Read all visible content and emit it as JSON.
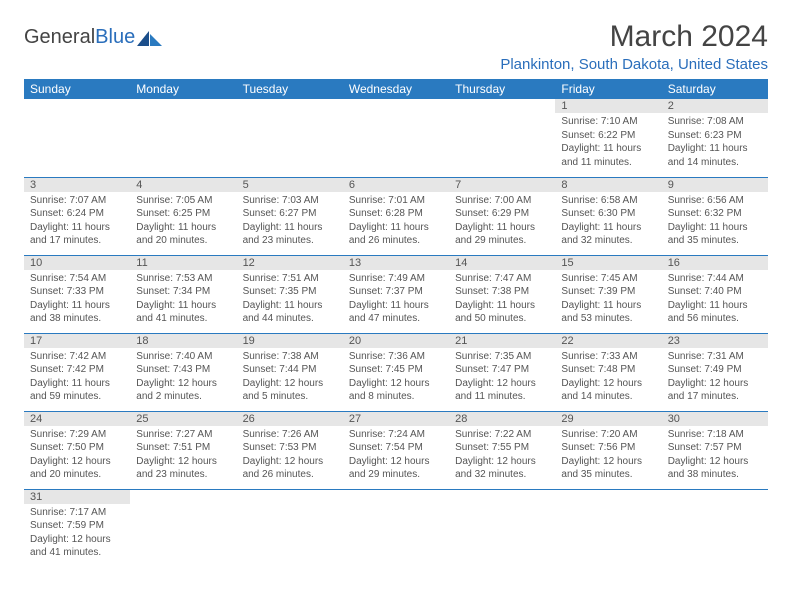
{
  "brand": {
    "text1": "General",
    "text2": "Blue"
  },
  "title": "March 2024",
  "location": "Plankinton, South Dakota, United States",
  "weekdays": [
    "Sunday",
    "Monday",
    "Tuesday",
    "Wednesday",
    "Thursday",
    "Friday",
    "Saturday"
  ],
  "colors": {
    "header_bg": "#2a7ac0",
    "accent": "#2a6ebb",
    "daynum_bg": "#e6e6e6"
  },
  "grid": [
    [
      null,
      null,
      null,
      null,
      null,
      {
        "n": "1",
        "sr": "Sunrise: 7:10 AM",
        "ss": "Sunset: 6:22 PM",
        "dl": "Daylight: 11 hours and 11 minutes."
      },
      {
        "n": "2",
        "sr": "Sunrise: 7:08 AM",
        "ss": "Sunset: 6:23 PM",
        "dl": "Daylight: 11 hours and 14 minutes."
      }
    ],
    [
      {
        "n": "3",
        "sr": "Sunrise: 7:07 AM",
        "ss": "Sunset: 6:24 PM",
        "dl": "Daylight: 11 hours and 17 minutes."
      },
      {
        "n": "4",
        "sr": "Sunrise: 7:05 AM",
        "ss": "Sunset: 6:25 PM",
        "dl": "Daylight: 11 hours and 20 minutes."
      },
      {
        "n": "5",
        "sr": "Sunrise: 7:03 AM",
        "ss": "Sunset: 6:27 PM",
        "dl": "Daylight: 11 hours and 23 minutes."
      },
      {
        "n": "6",
        "sr": "Sunrise: 7:01 AM",
        "ss": "Sunset: 6:28 PM",
        "dl": "Daylight: 11 hours and 26 minutes."
      },
      {
        "n": "7",
        "sr": "Sunrise: 7:00 AM",
        "ss": "Sunset: 6:29 PM",
        "dl": "Daylight: 11 hours and 29 minutes."
      },
      {
        "n": "8",
        "sr": "Sunrise: 6:58 AM",
        "ss": "Sunset: 6:30 PM",
        "dl": "Daylight: 11 hours and 32 minutes."
      },
      {
        "n": "9",
        "sr": "Sunrise: 6:56 AM",
        "ss": "Sunset: 6:32 PM",
        "dl": "Daylight: 11 hours and 35 minutes."
      }
    ],
    [
      {
        "n": "10",
        "sr": "Sunrise: 7:54 AM",
        "ss": "Sunset: 7:33 PM",
        "dl": "Daylight: 11 hours and 38 minutes."
      },
      {
        "n": "11",
        "sr": "Sunrise: 7:53 AM",
        "ss": "Sunset: 7:34 PM",
        "dl": "Daylight: 11 hours and 41 minutes."
      },
      {
        "n": "12",
        "sr": "Sunrise: 7:51 AM",
        "ss": "Sunset: 7:35 PM",
        "dl": "Daylight: 11 hours and 44 minutes."
      },
      {
        "n": "13",
        "sr": "Sunrise: 7:49 AM",
        "ss": "Sunset: 7:37 PM",
        "dl": "Daylight: 11 hours and 47 minutes."
      },
      {
        "n": "14",
        "sr": "Sunrise: 7:47 AM",
        "ss": "Sunset: 7:38 PM",
        "dl": "Daylight: 11 hours and 50 minutes."
      },
      {
        "n": "15",
        "sr": "Sunrise: 7:45 AM",
        "ss": "Sunset: 7:39 PM",
        "dl": "Daylight: 11 hours and 53 minutes."
      },
      {
        "n": "16",
        "sr": "Sunrise: 7:44 AM",
        "ss": "Sunset: 7:40 PM",
        "dl": "Daylight: 11 hours and 56 minutes."
      }
    ],
    [
      {
        "n": "17",
        "sr": "Sunrise: 7:42 AM",
        "ss": "Sunset: 7:42 PM",
        "dl": "Daylight: 11 hours and 59 minutes."
      },
      {
        "n": "18",
        "sr": "Sunrise: 7:40 AM",
        "ss": "Sunset: 7:43 PM",
        "dl": "Daylight: 12 hours and 2 minutes."
      },
      {
        "n": "19",
        "sr": "Sunrise: 7:38 AM",
        "ss": "Sunset: 7:44 PM",
        "dl": "Daylight: 12 hours and 5 minutes."
      },
      {
        "n": "20",
        "sr": "Sunrise: 7:36 AM",
        "ss": "Sunset: 7:45 PM",
        "dl": "Daylight: 12 hours and 8 minutes."
      },
      {
        "n": "21",
        "sr": "Sunrise: 7:35 AM",
        "ss": "Sunset: 7:47 PM",
        "dl": "Daylight: 12 hours and 11 minutes."
      },
      {
        "n": "22",
        "sr": "Sunrise: 7:33 AM",
        "ss": "Sunset: 7:48 PM",
        "dl": "Daylight: 12 hours and 14 minutes."
      },
      {
        "n": "23",
        "sr": "Sunrise: 7:31 AM",
        "ss": "Sunset: 7:49 PM",
        "dl": "Daylight: 12 hours and 17 minutes."
      }
    ],
    [
      {
        "n": "24",
        "sr": "Sunrise: 7:29 AM",
        "ss": "Sunset: 7:50 PM",
        "dl": "Daylight: 12 hours and 20 minutes."
      },
      {
        "n": "25",
        "sr": "Sunrise: 7:27 AM",
        "ss": "Sunset: 7:51 PM",
        "dl": "Daylight: 12 hours and 23 minutes."
      },
      {
        "n": "26",
        "sr": "Sunrise: 7:26 AM",
        "ss": "Sunset: 7:53 PM",
        "dl": "Daylight: 12 hours and 26 minutes."
      },
      {
        "n": "27",
        "sr": "Sunrise: 7:24 AM",
        "ss": "Sunset: 7:54 PM",
        "dl": "Daylight: 12 hours and 29 minutes."
      },
      {
        "n": "28",
        "sr": "Sunrise: 7:22 AM",
        "ss": "Sunset: 7:55 PM",
        "dl": "Daylight: 12 hours and 32 minutes."
      },
      {
        "n": "29",
        "sr": "Sunrise: 7:20 AM",
        "ss": "Sunset: 7:56 PM",
        "dl": "Daylight: 12 hours and 35 minutes."
      },
      {
        "n": "30",
        "sr": "Sunrise: 7:18 AM",
        "ss": "Sunset: 7:57 PM",
        "dl": "Daylight: 12 hours and 38 minutes."
      }
    ],
    [
      {
        "n": "31",
        "sr": "Sunrise: 7:17 AM",
        "ss": "Sunset: 7:59 PM",
        "dl": "Daylight: 12 hours and 41 minutes."
      },
      null,
      null,
      null,
      null,
      null,
      null
    ]
  ]
}
